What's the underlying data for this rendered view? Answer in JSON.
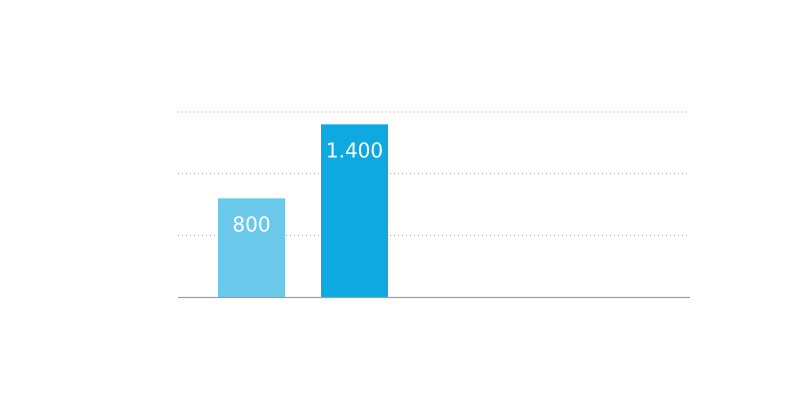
{
  "chart_data": {
    "type": "bar",
    "title": "",
    "xlabel": "",
    "ylabel": "",
    "ylim": [
      0,
      1500
    ],
    "grid": true,
    "gridlines": [
      500,
      1000,
      1500
    ],
    "categories": [
      "",
      ""
    ],
    "values": [
      800,
      1400
    ],
    "labels": [
      "800",
      "1.400"
    ],
    "colors": [
      "#6ac8ea",
      "#0ea9e1"
    ],
    "axis_color": "#9e9e9e",
    "grid_color": "#9e9e9e",
    "label_color": "#ffffff"
  }
}
